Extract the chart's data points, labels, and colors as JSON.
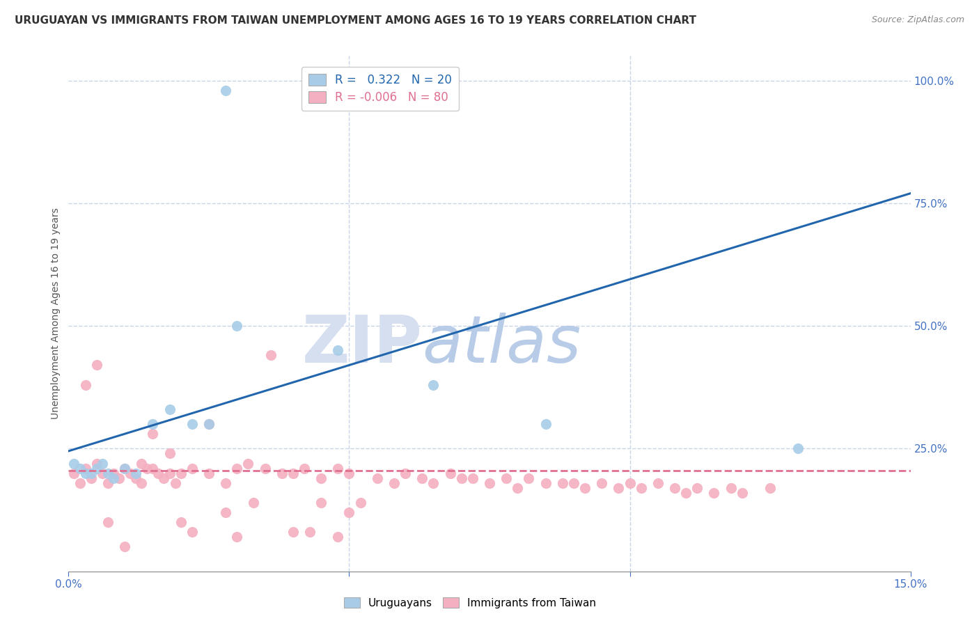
{
  "title": "URUGUAYAN VS IMMIGRANTS FROM TAIWAN UNEMPLOYMENT AMONG AGES 16 TO 19 YEARS CORRELATION CHART",
  "source": "Source: ZipAtlas.com",
  "ylabel": "Unemployment Among Ages 16 to 19 years",
  "xlim": [
    0.0,
    0.15
  ],
  "ylim": [
    0.0,
    1.05
  ],
  "ytick_positions": [
    0.25,
    0.5,
    0.75,
    1.0
  ],
  "ytick_labels": [
    "25.0%",
    "50.0%",
    "75.0%",
    "100.0%"
  ],
  "blue_R": 0.322,
  "blue_N": 20,
  "pink_R": -0.006,
  "pink_N": 80,
  "blue_color": "#a8cce8",
  "pink_color": "#f4b0c0",
  "blue_line_color": "#2166ac",
  "pink_line_color": "#e07090",
  "watermark_color": "#d0dff5",
  "background_color": "#ffffff",
  "grid_color": "#c8d4e8",
  "title_fontsize": 11,
  "axis_label_fontsize": 10,
  "tick_fontsize": 11,
  "blue_line_x0": 0.0,
  "blue_line_y0": 0.245,
  "blue_line_x1": 0.15,
  "blue_line_y1": 0.77,
  "pink_line_x0": 0.0,
  "pink_line_y0": 0.205,
  "pink_line_x1": 0.15,
  "pink_line_y1": 0.205,
  "blue_scatter_x": [
    0.001,
    0.002,
    0.003,
    0.004,
    0.005,
    0.006,
    0.007,
    0.008,
    0.01,
    0.012,
    0.015,
    0.018,
    0.022,
    0.025,
    0.03,
    0.048,
    0.065,
    0.085,
    0.13,
    0.028
  ],
  "blue_scatter_y": [
    0.22,
    0.21,
    0.2,
    0.2,
    0.21,
    0.22,
    0.2,
    0.19,
    0.21,
    0.2,
    0.3,
    0.33,
    0.3,
    0.3,
    0.5,
    0.45,
    0.38,
    0.3,
    0.25,
    0.98
  ],
  "pink_scatter_x": [
    0.001,
    0.002,
    0.003,
    0.004,
    0.005,
    0.006,
    0.007,
    0.008,
    0.009,
    0.01,
    0.011,
    0.012,
    0.013,
    0.014,
    0.015,
    0.016,
    0.017,
    0.018,
    0.019,
    0.02,
    0.022,
    0.025,
    0.028,
    0.03,
    0.032,
    0.035,
    0.038,
    0.04,
    0.042,
    0.045,
    0.048,
    0.05,
    0.055,
    0.058,
    0.06,
    0.063,
    0.065,
    0.068,
    0.07,
    0.072,
    0.075,
    0.078,
    0.08,
    0.082,
    0.085,
    0.088,
    0.09,
    0.092,
    0.095,
    0.098,
    0.1,
    0.102,
    0.105,
    0.108,
    0.11,
    0.112,
    0.115,
    0.118,
    0.12,
    0.125,
    0.003,
    0.005,
    0.007,
    0.01,
    0.013,
    0.015,
    0.018,
    0.02,
    0.022,
    0.025,
    0.028,
    0.03,
    0.033,
    0.036,
    0.04,
    0.043,
    0.045,
    0.048,
    0.05,
    0.052
  ],
  "pink_scatter_y": [
    0.2,
    0.18,
    0.21,
    0.19,
    0.22,
    0.2,
    0.18,
    0.2,
    0.19,
    0.21,
    0.2,
    0.19,
    0.18,
    0.21,
    0.21,
    0.2,
    0.19,
    0.2,
    0.18,
    0.2,
    0.21,
    0.2,
    0.18,
    0.21,
    0.22,
    0.21,
    0.2,
    0.2,
    0.21,
    0.19,
    0.21,
    0.2,
    0.19,
    0.18,
    0.2,
    0.19,
    0.18,
    0.2,
    0.19,
    0.19,
    0.18,
    0.19,
    0.17,
    0.19,
    0.18,
    0.18,
    0.18,
    0.17,
    0.18,
    0.17,
    0.18,
    0.17,
    0.18,
    0.17,
    0.16,
    0.17,
    0.16,
    0.17,
    0.16,
    0.17,
    0.38,
    0.42,
    0.1,
    0.05,
    0.22,
    0.28,
    0.24,
    0.1,
    0.08,
    0.3,
    0.12,
    0.07,
    0.14,
    0.44,
    0.08,
    0.08,
    0.14,
    0.07,
    0.12,
    0.14
  ]
}
